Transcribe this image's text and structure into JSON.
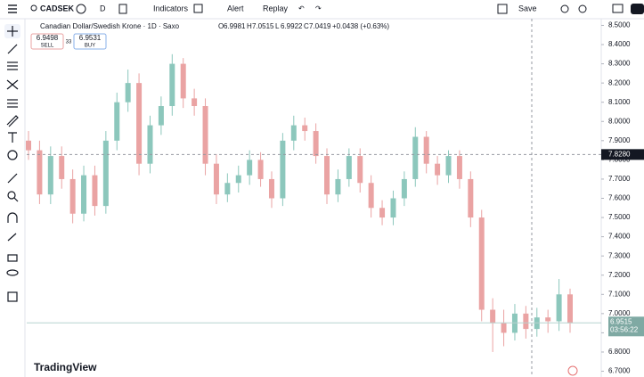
{
  "toolbar": {
    "symbol": "CADSEK",
    "interval": "D",
    "indicators": "Indicators",
    "alert": "Alert",
    "replay": "Replay",
    "save": "Save"
  },
  "legend": {
    "title": "Canadian Dollar/Swedish Krone · 1D · Saxo",
    "o_label": "O",
    "o": "6.9981",
    "h_label": "H",
    "h": "7.0515",
    "l_label": "L",
    "l": "6.9922",
    "c_label": "C",
    "c": "7.0419",
    "change": "+0.0438 (+0.63%)",
    "sell_price": "6.9498",
    "sell": "SELL",
    "spread": "33",
    "buy_price": "6.9531",
    "buy": "BUY"
  },
  "logo": "TradingView",
  "chart_data": {
    "type": "candlestick",
    "open": [
      7.9,
      7.85,
      7.62,
      7.82,
      7.7,
      7.52,
      7.72,
      7.56,
      7.9,
      8.1,
      8.2,
      7.78,
      7.98,
      8.08,
      8.3,
      8.12,
      8.08,
      7.78,
      7.62,
      7.68,
      7.72,
      7.8,
      7.7,
      7.6,
      7.9,
      7.98,
      7.95,
      7.82,
      7.62,
      7.7,
      7.82,
      7.68,
      7.55,
      7.5,
      7.6,
      7.7,
      7.92,
      7.78,
      7.72,
      7.82,
      7.7,
      7.5,
      7.02,
      6.95,
      6.9,
      7.0,
      6.92,
      6.98,
      6.96,
      7.1
    ],
    "high": [
      7.95,
      7.9,
      7.87,
      7.87,
      7.75,
      7.77,
      7.77,
      7.95,
      8.15,
      8.27,
      8.25,
      8.03,
      8.13,
      8.35,
      8.33,
      8.17,
      8.12,
      7.83,
      7.73,
      7.77,
      7.85,
      7.84,
      7.74,
      7.94,
      8.03,
      8.02,
      7.99,
      7.86,
      7.75,
      7.86,
      7.86,
      7.72,
      7.59,
      7.64,
      7.74,
      7.97,
      7.95,
      7.82,
      7.85,
      7.85,
      7.74,
      7.54,
      7.08,
      7.02,
      7.05,
      7.04,
      7.03,
      7.02,
      7.18,
      7.13
    ],
    "low": [
      7.8,
      7.57,
      7.57,
      7.65,
      7.47,
      7.48,
      7.51,
      7.52,
      7.85,
      8.05,
      7.72,
      7.73,
      7.93,
      8.03,
      8.07,
      8.03,
      7.72,
      7.57,
      7.58,
      7.63,
      7.67,
      7.66,
      7.55,
      7.56,
      7.85,
      7.9,
      7.78,
      7.57,
      7.58,
      7.66,
      7.63,
      7.5,
      7.46,
      7.46,
      7.56,
      7.66,
      7.73,
      7.67,
      7.68,
      7.65,
      7.45,
      6.96,
      6.8,
      6.83,
      6.86,
      6.87,
      6.88,
      6.9,
      6.91,
      6.9
    ],
    "close": [
      7.85,
      7.62,
      7.82,
      7.7,
      7.52,
      7.72,
      7.56,
      7.9,
      8.1,
      8.2,
      7.78,
      7.98,
      8.08,
      8.3,
      8.12,
      8.08,
      7.78,
      7.62,
      7.68,
      7.72,
      7.8,
      7.7,
      7.6,
      7.9,
      7.98,
      7.95,
      7.82,
      7.62,
      7.7,
      7.82,
      7.68,
      7.55,
      7.5,
      7.6,
      7.7,
      7.92,
      7.78,
      7.72,
      7.82,
      7.7,
      7.5,
      7.02,
      6.95,
      6.9,
      7.0,
      6.92,
      6.98,
      6.96,
      7.1,
      6.95
    ],
    "up_color": "#8cc7bc",
    "down_color": "#eaa3a3",
    "ylim": [
      6.67,
      8.53
    ],
    "yticks": [
      {
        "value": 6.7,
        "label": "6.7000"
      },
      {
        "value": 6.8,
        "label": "6.8000"
      },
      {
        "value": 6.9,
        "label": "6.9000"
      },
      {
        "value": 7.0,
        "label": "7.0000"
      },
      {
        "value": 7.1,
        "label": "7.1000"
      },
      {
        "value": 7.2,
        "label": "7.2000"
      },
      {
        "value": 7.3,
        "label": "7.3000"
      },
      {
        "value": 7.4,
        "label": "7.4000"
      },
      {
        "value": 7.5,
        "label": "7.5000"
      },
      {
        "value": 7.6,
        "label": "7.6000"
      },
      {
        "value": 7.7,
        "label": "7.7000"
      },
      {
        "value": 7.8,
        "label": "7.8000"
      },
      {
        "value": 7.9,
        "label": "7.9000"
      },
      {
        "value": 8.0,
        "label": "8.0000"
      },
      {
        "value": 8.1,
        "label": "8.1000"
      },
      {
        "value": 8.2,
        "label": "8.2000"
      },
      {
        "value": 8.3,
        "label": "8.3000"
      },
      {
        "value": 8.4,
        "label": "8.4000"
      },
      {
        "value": 8.5,
        "label": "8.5000"
      }
    ],
    "crosshair_price": {
      "value": 7.828,
      "label": "7.8280"
    },
    "last_price": {
      "value": 6.9515,
      "label": "6.9515"
    },
    "countdown": "03:56:22"
  }
}
